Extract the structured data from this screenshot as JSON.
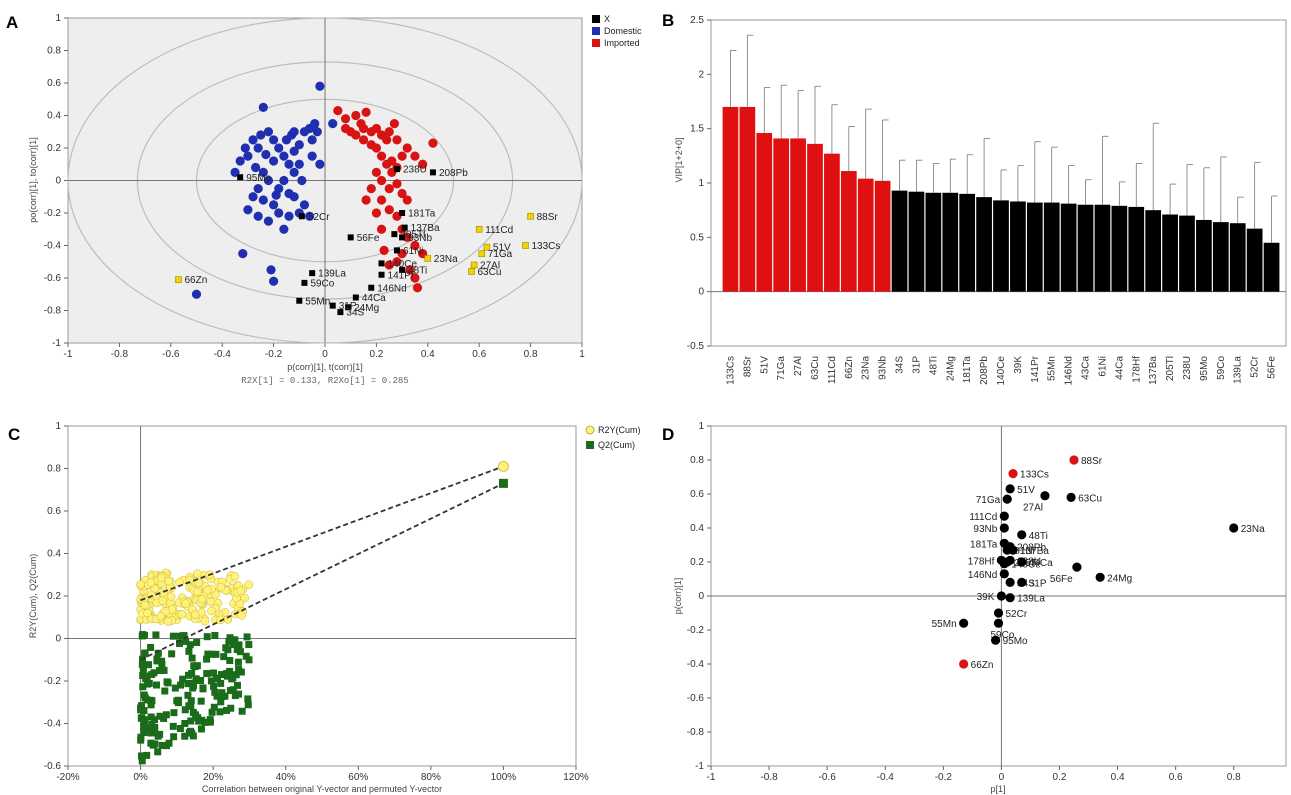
{
  "colors": {
    "domestic": "#1f2fb0",
    "imported": "#d81313",
    "x_var": "#000000",
    "x_var_highlight": "#f2d200",
    "r2y": "#fff27a",
    "q2": "#1a6b1a",
    "vip_red": "#e01010",
    "vip_black": "#000000",
    "plot_bg": "#eeeeee",
    "d_red_label": "#d81313"
  },
  "chart_data": [
    {
      "panel": "A",
      "type": "scatter",
      "xlabel": "p(corr)[1], t(corr)[1]",
      "ylabel": "po(corr)[1], to(corr)[1]",
      "xlim": [
        -1,
        1
      ],
      "ylim": [
        -1,
        1
      ],
      "xticks": [
        "-1",
        "-0.8",
        "-0.6",
        "-0.4",
        "-0.2",
        "0",
        "0.2",
        "0.4",
        "0.6",
        "0.8",
        "1"
      ],
      "yticks": [
        "1",
        "0.8",
        "0.6",
        "0.4",
        "0.2",
        "0",
        "-0.2",
        "-0.4",
        "-0.6",
        "-0.8",
        "-1"
      ],
      "note": "R2X[1] = 0.133, R2Xo[1] = 0.285",
      "legend": [
        "X",
        "Domestic",
        "Imported"
      ],
      "ellipses": [
        1,
        0.73,
        0.5
      ],
      "domestic_points": [
        [
          -0.5,
          -0.7
        ],
        [
          -0.32,
          -0.45
        ],
        [
          -0.35,
          0.05
        ],
        [
          -0.33,
          0.12
        ],
        [
          -0.3,
          0.15
        ],
        [
          -0.31,
          0.2
        ],
        [
          -0.28,
          0.25
        ],
        [
          -0.26,
          0.2
        ],
        [
          -0.25,
          0.28
        ],
        [
          -0.22,
          0.3
        ],
        [
          -0.2,
          0.25
        ],
        [
          -0.18,
          0.2
        ],
        [
          -0.16,
          0.15
        ],
        [
          -0.15,
          0.25
        ],
        [
          -0.13,
          0.28
        ],
        [
          -0.12,
          0.18
        ],
        [
          -0.1,
          0.22
        ],
        [
          -0.08,
          0.3
        ],
        [
          -0.06,
          0.32
        ],
        [
          -0.05,
          0.25
        ],
        [
          -0.04,
          0.35
        ],
        [
          -0.03,
          0.3
        ],
        [
          -0.02,
          0.1
        ],
        [
          -0.1,
          0.1
        ],
        [
          -0.14,
          0.1
        ],
        [
          -0.2,
          0.12
        ],
        [
          -0.24,
          0.05
        ],
        [
          -0.22,
          0.0
        ],
        [
          -0.18,
          -0.05
        ],
        [
          -0.16,
          0.0
        ],
        [
          -0.12,
          0.05
        ],
        [
          -0.26,
          -0.05
        ],
        [
          -0.28,
          -0.1
        ],
        [
          -0.24,
          -0.12
        ],
        [
          -0.2,
          -0.15
        ],
        [
          -0.18,
          -0.2
        ],
        [
          -0.14,
          -0.22
        ],
        [
          -0.1,
          -0.2
        ],
        [
          -0.08,
          -0.15
        ],
        [
          -0.22,
          -0.25
        ],
        [
          -0.26,
          -0.22
        ],
        [
          -0.3,
          -0.18
        ],
        [
          -0.16,
          -0.3
        ],
        [
          -0.12,
          -0.1
        ],
        [
          -0.06,
          -0.22
        ],
        [
          -0.27,
          0.08
        ],
        [
          -0.23,
          0.16
        ],
        [
          -0.19,
          -0.09
        ],
        [
          -0.21,
          -0.55
        ],
        [
          -0.2,
          -0.62
        ],
        [
          -0.05,
          0.15
        ],
        [
          -0.09,
          0.0
        ],
        [
          -0.12,
          0.3
        ],
        [
          0.03,
          0.35
        ],
        [
          -0.02,
          0.58
        ],
        [
          -0.24,
          0.45
        ],
        [
          -0.14,
          -0.08
        ]
      ],
      "imported_points": [
        [
          0.05,
          0.43
        ],
        [
          0.08,
          0.38
        ],
        [
          0.12,
          0.4
        ],
        [
          0.15,
          0.32
        ],
        [
          0.18,
          0.3
        ],
        [
          0.2,
          0.32
        ],
        [
          0.22,
          0.28
        ],
        [
          0.24,
          0.25
        ],
        [
          0.25,
          0.3
        ],
        [
          0.28,
          0.25
        ],
        [
          0.1,
          0.3
        ],
        [
          0.12,
          0.28
        ],
        [
          0.15,
          0.25
        ],
        [
          0.18,
          0.22
        ],
        [
          0.2,
          0.2
        ],
        [
          0.22,
          0.15
        ],
        [
          0.24,
          0.1
        ],
        [
          0.26,
          0.05
        ],
        [
          0.28,
          0.08
        ],
        [
          0.3,
          0.15
        ],
        [
          0.32,
          0.2
        ],
        [
          0.35,
          0.15
        ],
        [
          0.38,
          0.1
        ],
        [
          0.42,
          0.23
        ],
        [
          0.14,
          0.35
        ],
        [
          0.16,
          0.42
        ],
        [
          0.08,
          0.32
        ],
        [
          0.27,
          0.35
        ],
        [
          0.2,
          0.05
        ],
        [
          0.22,
          0.0
        ],
        [
          0.25,
          -0.05
        ],
        [
          0.28,
          -0.02
        ],
        [
          0.3,
          -0.08
        ],
        [
          0.18,
          -0.05
        ],
        [
          0.16,
          -0.12
        ],
        [
          0.22,
          -0.12
        ],
        [
          0.25,
          -0.18
        ],
        [
          0.28,
          -0.22
        ],
        [
          0.3,
          -0.3
        ],
        [
          0.32,
          -0.35
        ],
        [
          0.35,
          -0.4
        ],
        [
          0.3,
          -0.45
        ],
        [
          0.28,
          -0.5
        ],
        [
          0.25,
          -0.52
        ],
        [
          0.33,
          -0.55
        ],
        [
          0.35,
          -0.6
        ],
        [
          0.36,
          -0.66
        ],
        [
          0.38,
          -0.45
        ],
        [
          0.22,
          -0.3
        ],
        [
          0.2,
          -0.2
        ],
        [
          0.32,
          -0.12
        ],
        [
          0.26,
          0.12
        ],
        [
          0.23,
          -0.43
        ]
      ],
      "variables": [
        {
          "name": "23Na",
          "x": 0.4,
          "y": -0.48,
          "highlight": true
        },
        {
          "name": "133Cs",
          "x": 0.78,
          "y": -0.4,
          "highlight": true
        },
        {
          "name": "88Sr",
          "x": 0.8,
          "y": -0.22,
          "highlight": true
        },
        {
          "name": "111Cd",
          "x": 0.6,
          "y": -0.3,
          "highlight": true
        },
        {
          "name": "51V",
          "x": 0.63,
          "y": -0.41,
          "highlight": true
        },
        {
          "name": "71Ga",
          "x": 0.61,
          "y": -0.45,
          "highlight": true
        },
        {
          "name": "27Al",
          "x": 0.58,
          "y": -0.52,
          "highlight": true
        },
        {
          "name": "63Cu",
          "x": 0.57,
          "y": -0.56,
          "highlight": true
        },
        {
          "name": "66Zn",
          "x": -0.57,
          "y": -0.61,
          "highlight": true
        },
        {
          "name": "238U",
          "x": 0.28,
          "y": 0.07,
          "highlight": false
        },
        {
          "name": "208Pb",
          "x": 0.42,
          "y": 0.05,
          "highlight": false
        },
        {
          "name": "181Ta",
          "x": 0.3,
          "y": -0.2,
          "highlight": false
        },
        {
          "name": "137Ba",
          "x": 0.31,
          "y": -0.29,
          "highlight": false
        },
        {
          "name": "205Tl",
          "x": 0.27,
          "y": -0.33,
          "highlight": false
        },
        {
          "name": "93Nb",
          "x": 0.3,
          "y": -0.35,
          "highlight": false
        },
        {
          "name": "56Fe",
          "x": 0.1,
          "y": -0.35,
          "highlight": false
        },
        {
          "name": "61Ni",
          "x": 0.28,
          "y": -0.43,
          "highlight": false
        },
        {
          "name": "140Ce",
          "x": 0.22,
          "y": -0.51,
          "highlight": false
        },
        {
          "name": "48Ti",
          "x": 0.3,
          "y": -0.55,
          "highlight": false
        },
        {
          "name": "141Pr",
          "x": 0.22,
          "y": -0.58,
          "highlight": false
        },
        {
          "name": "146Nd",
          "x": 0.18,
          "y": -0.66,
          "highlight": false
        },
        {
          "name": "44Ca",
          "x": 0.12,
          "y": -0.72,
          "highlight": false
        },
        {
          "name": "24Mg",
          "x": 0.09,
          "y": -0.78,
          "highlight": false
        },
        {
          "name": "34S",
          "x": 0.06,
          "y": -0.81,
          "highlight": false
        },
        {
          "name": "31P",
          "x": 0.03,
          "y": -0.77,
          "highlight": false
        },
        {
          "name": "139La",
          "x": -0.05,
          "y": -0.57,
          "highlight": false
        },
        {
          "name": "59Co",
          "x": -0.08,
          "y": -0.63,
          "highlight": false
        },
        {
          "name": "55Mn",
          "x": -0.1,
          "y": -0.74,
          "highlight": false
        },
        {
          "name": "52Cr",
          "x": -0.09,
          "y": -0.22,
          "highlight": false
        },
        {
          "name": "95Mo",
          "x": -0.33,
          "y": 0.02,
          "highlight": false
        }
      ]
    },
    {
      "panel": "B",
      "type": "bar",
      "ylabel": "VIP[1+2+0]",
      "ylim": [
        -0.5,
        2.5
      ],
      "yticks": [
        "2.5",
        "2",
        "1.5",
        "1",
        "0.5",
        "0",
        "-0.5"
      ],
      "categories": [
        "133Cs",
        "88Sr",
        "51V",
        "71Ga",
        "27Al",
        "63Cu",
        "111Cd",
        "66Zn",
        "23Na",
        "93Nb",
        "34S",
        "31P",
        "48Ti",
        "24Mg",
        "181Ta",
        "208Pb",
        "140Ce",
        "39K",
        "141Pr",
        "55Mn",
        "146Nd",
        "43Ca",
        "61Ni",
        "44Ca",
        "178Hf",
        "137Ba",
        "205Tl",
        "238U",
        "95Mo",
        "59Co",
        "139La",
        "52Cr",
        "56Fe"
      ],
      "values": [
        1.7,
        1.7,
        1.46,
        1.41,
        1.41,
        1.36,
        1.27,
        1.11,
        1.04,
        1.02,
        0.93,
        0.92,
        0.91,
        0.91,
        0.9,
        0.87,
        0.84,
        0.83,
        0.82,
        0.82,
        0.81,
        0.8,
        0.8,
        0.79,
        0.78,
        0.75,
        0.71,
        0.7,
        0.66,
        0.64,
        0.63,
        0.58,
        0.45
      ],
      "errors": [
        0.52,
        0.66,
        0.42,
        0.49,
        0.44,
        0.53,
        0.45,
        0.41,
        0.64,
        0.56,
        0.28,
        0.29,
        0.27,
        0.31,
        0.36,
        0.54,
        0.28,
        0.33,
        0.56,
        0.51,
        0.35,
        0.23,
        0.63,
        0.22,
        0.4,
        0.8,
        0.28,
        0.47,
        0.48,
        0.6,
        0.24,
        0.61,
        0.43
      ],
      "red_count": 10
    },
    {
      "panel": "C",
      "type": "scatter",
      "xlabel": "Correlation between original Y-vector and permuted Y-vector",
      "ylabel": "R2Y(Cum), Q2(Cum)",
      "xlim": [
        -20,
        120
      ],
      "ylim": [
        -0.6,
        1
      ],
      "xticks": [
        "-20%",
        "0%",
        "20%",
        "40%",
        "60%",
        "80%",
        "100%",
        "120%"
      ],
      "yticks": [
        "1",
        "0.8",
        "0.6",
        "0.4",
        "0.2",
        "0",
        "-0.2",
        "-0.4",
        "-0.6"
      ],
      "legend": [
        "R2Y(Cum)",
        "Q2(Cum)"
      ],
      "r2y_original": [
        100,
        0.81
      ],
      "q2_original": [
        100,
        0.73
      ],
      "r2y_permuted": {
        "count": 180,
        "x_range": [
          0,
          30
        ],
        "y_range": [
          0.08,
          0.31
        ]
      },
      "q2_permuted": {
        "count": 190,
        "x_range": [
          0,
          30
        ],
        "y_range": [
          -0.58,
          0.02
        ]
      }
    },
    {
      "panel": "D",
      "type": "scatter",
      "xlabel": "p[1]",
      "ylabel": "p(corr)[1]",
      "xlim": [
        -1,
        1
      ],
      "ylim": [
        -1,
        1
      ],
      "xticks": [
        "-1",
        "-0.8",
        "-0.6",
        "-0.4",
        "-0.2",
        "0",
        "0.2",
        "0.4",
        "0.6",
        "0.8"
      ],
      "yticks": [
        "1",
        "0.8",
        "0.6",
        "0.4",
        "0.2",
        "0",
        "-0.2",
        "-0.4",
        "-0.6",
        "-0.8",
        "-1"
      ],
      "points": [
        {
          "name": "88Sr",
          "x": 0.25,
          "y": 0.8,
          "red": true
        },
        {
          "name": "133Cs",
          "x": 0.04,
          "y": 0.72,
          "red": true
        },
        {
          "name": "66Zn",
          "x": -0.13,
          "y": -0.4,
          "red": true
        },
        {
          "name": "51V",
          "x": 0.03,
          "y": 0.63,
          "red": false
        },
        {
          "name": "71Ga",
          "x": 0.02,
          "y": 0.57,
          "red": false
        },
        {
          "name": "27Al",
          "x": 0.15,
          "y": 0.59,
          "red": false
        },
        {
          "name": "63Cu",
          "x": 0.24,
          "y": 0.58,
          "red": false
        },
        {
          "name": "111Cd",
          "x": 0.01,
          "y": 0.47,
          "red": false
        },
        {
          "name": "48Ti",
          "x": 0.07,
          "y": 0.36,
          "red": false
        },
        {
          "name": "23Na",
          "x": 0.8,
          "y": 0.4,
          "red": false
        },
        {
          "name": "93Nb",
          "x": 0.01,
          "y": 0.4,
          "red": false
        },
        {
          "name": "181Ta",
          "x": 0.01,
          "y": 0.31,
          "red": false
        },
        {
          "name": "61Ni",
          "x": 0.02,
          "y": 0.27,
          "red": false
        },
        {
          "name": "208Pb",
          "x": 0.03,
          "y": 0.29,
          "red": false
        },
        {
          "name": "137Ba",
          "x": 0.04,
          "y": 0.27,
          "red": false
        },
        {
          "name": "178Hf",
          "x": 0.0,
          "y": 0.21,
          "red": false
        },
        {
          "name": "140Ce",
          "x": 0.01,
          "y": 0.19,
          "red": false
        },
        {
          "name": "205Tl",
          "x": 0.02,
          "y": 0.2,
          "red": false
        },
        {
          "name": "238U",
          "x": 0.03,
          "y": 0.21,
          "red": false
        },
        {
          "name": "44Ca",
          "x": 0.07,
          "y": 0.2,
          "red": false
        },
        {
          "name": "56Fe",
          "x": 0.26,
          "y": 0.17,
          "red": false
        },
        {
          "name": "24Mg",
          "x": 0.34,
          "y": 0.11,
          "red": false
        },
        {
          "name": "146Nd",
          "x": 0.01,
          "y": 0.13,
          "red": false
        },
        {
          "name": "34S",
          "x": 0.03,
          "y": 0.08,
          "red": false
        },
        {
          "name": "31P",
          "x": 0.07,
          "y": 0.08,
          "red": false
        },
        {
          "name": "39K",
          "x": 0.0,
          "y": 0.0,
          "red": false
        },
        {
          "name": "139La",
          "x": 0.03,
          "y": -0.01,
          "red": false
        },
        {
          "name": "52Cr",
          "x": -0.01,
          "y": -0.1,
          "red": false
        },
        {
          "name": "59Co",
          "x": -0.01,
          "y": -0.16,
          "red": false
        },
        {
          "name": "55Mn",
          "x": -0.13,
          "y": -0.16,
          "red": false
        },
        {
          "name": "95Mo",
          "x": -0.02,
          "y": -0.26,
          "red": false
        }
      ]
    }
  ]
}
